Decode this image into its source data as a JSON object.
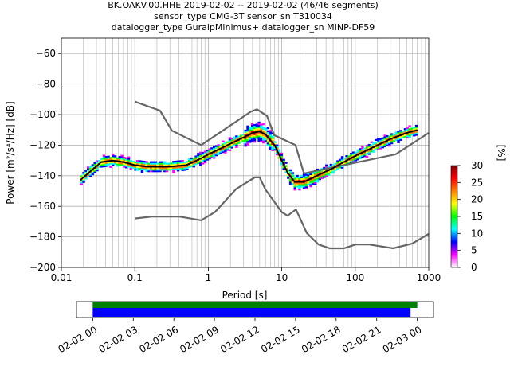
{
  "title_lines": [
    "BK.OAKV.00.HHE   2019-02-02 -- 2019-02-02  (46/46 segments)",
    "sensor_type CMG-3T sensor_sn T310034",
    "datalogger_type GuralpMinimus+ datalogger_sn MINP-DF59"
  ],
  "chart_data": {
    "type": "heatmap",
    "title": "BK.OAKV.00.HHE   2019-02-02 -- 2019-02-02  (46/46 segments)",
    "xlabel": "Period [s]",
    "ylabel": "Power [m²/s⁴/Hz] [dB]",
    "x_scale": "log",
    "xlim": [
      0.01,
      1000
    ],
    "ylim": [
      -200,
      -50
    ],
    "grid": true,
    "x_ticks": [
      0.01,
      0.1,
      1,
      10,
      100,
      1000
    ],
    "x_tick_labels": [
      "0.01",
      "0.1",
      "1",
      "10",
      "100",
      "1000"
    ],
    "y_ticks": [
      -200,
      -180,
      -160,
      -140,
      -120,
      -100,
      -80,
      -60
    ],
    "y_tick_labels": [
      "−200",
      "−180",
      "−160",
      "−140",
      "−120",
      "−100",
      "−80",
      "−60"
    ],
    "colorbar": {
      "label": "[%]",
      "range": [
        0,
        30
      ],
      "ticks": [
        0,
        5,
        10,
        15,
        20,
        25,
        30
      ],
      "tick_labels": [
        "0",
        "5",
        "10",
        "15",
        "20",
        "25",
        "30"
      ],
      "colors": [
        "#ffffff",
        "#ff00ff",
        "#0000ff",
        "#00ffff",
        "#00ff00",
        "#ffff00",
        "#ff8000",
        "#ff0000",
        "#800000"
      ]
    },
    "mode_curve": {
      "period": [
        0.018,
        0.025,
        0.035,
        0.05,
        0.07,
        0.1,
        0.15,
        0.2,
        0.3,
        0.5,
        0.7,
        1,
        1.5,
        2,
        3,
        4,
        5,
        6,
        8,
        10,
        12,
        15,
        20,
        30,
        50,
        70,
        100,
        150,
        200,
        300,
        500,
        700
      ],
      "db": [
        -143,
        -137,
        -131,
        -130,
        -131,
        -133,
        -134,
        -134,
        -134,
        -133,
        -130,
        -126,
        -122,
        -119,
        -115,
        -112,
        -111,
        -113,
        -120,
        -130,
        -138,
        -144,
        -144,
        -140,
        -135,
        -131,
        -127,
        -123,
        -120,
        -116,
        -112,
        -110
      ]
    },
    "nhnm": {
      "period": [
        0.1,
        0.22,
        0.32,
        0.8,
        3.8,
        4.6,
        6.3,
        7.9,
        15.4,
        20,
        354.8,
        1000
      ],
      "db": [
        -91.5,
        -97.4,
        -110.5,
        -120,
        -98,
        -96.5,
        -101,
        -113.5,
        -120,
        -138.5,
        -126,
        -112
      ]
    },
    "nlnm": {
      "period": [
        0.1,
        0.17,
        0.4,
        0.8,
        1.24,
        2.4,
        4.3,
        5,
        6,
        10,
        12,
        15.6,
        21.9,
        31.6,
        45,
        70,
        101,
        154,
        328,
        600,
        1000
      ],
      "db": [
        -168,
        -166.7,
        -166.7,
        -169.2,
        -163.7,
        -148.6,
        -141.1,
        -141.1,
        -149,
        -163.8,
        -166.2,
        -162.1,
        -177.5,
        -185,
        -187.5,
        -187.5,
        -185,
        -185,
        -187.5,
        -184.4,
        -178
      ]
    },
    "timeline": {
      "tick_labels": [
        "02-02 00",
        "02-02 03",
        "02-02 06",
        "02-02 09",
        "02-02 12",
        "02-02 15",
        "02-02 18",
        "02-02 21",
        "02-03 00"
      ],
      "ticks_hours": [
        0,
        3,
        6,
        9,
        12,
        15,
        18,
        21,
        24
      ],
      "range_hours": [
        -1.2,
        25.2
      ],
      "green_bar_hours": [
        0,
        24
      ],
      "blue_bar_hours": [
        0,
        23.5
      ],
      "green": "#008000",
      "blue": "#0000ff"
    }
  }
}
